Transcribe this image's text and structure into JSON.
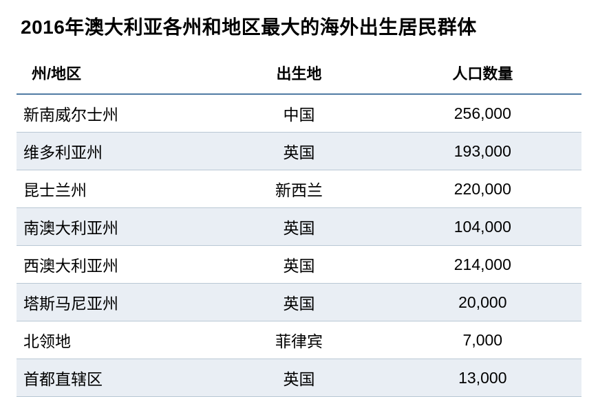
{
  "title": "2016年澳大利亚各州和地区最大的海外出生居民群体",
  "table": {
    "type": "table",
    "columns": [
      "州/地区",
      "出生地",
      "人口数量"
    ],
    "column_align": [
      "left",
      "center",
      "center"
    ],
    "header_fontsize": 22,
    "header_fontweight": 700,
    "body_fontsize": 23,
    "body_fontweight": 400,
    "header_border_color": "#4f7aa3",
    "header_border_width": 2,
    "row_border_color": "#b9c7d4",
    "row_border_width": 1,
    "stripe_even_bg": "#e9eef4",
    "stripe_odd_bg": "#ffffff",
    "text_color": "#000000",
    "rows": [
      {
        "state": "新南威尔士州",
        "birthplace": "中国",
        "population": "256,000"
      },
      {
        "state": "维多利亚州",
        "birthplace": "英国",
        "population": "193,000"
      },
      {
        "state": "昆士兰州",
        "birthplace": "新西兰",
        "population": "220,000"
      },
      {
        "state": "南澳大利亚州",
        "birthplace": "英国",
        "population": "104,000"
      },
      {
        "state": "西澳大利亚州",
        "birthplace": "英国",
        "population": "214,000"
      },
      {
        "state": "塔斯马尼亚州",
        "birthplace": "英国",
        "population": "20,000"
      },
      {
        "state": "北领地",
        "birthplace": "菲律宾",
        "population": "7,000"
      },
      {
        "state": "首都直辖区",
        "birthplace": "英国",
        "population": "13,000"
      }
    ]
  },
  "title_fontsize": 28,
  "title_fontweight": 700,
  "background_color": "#ffffff"
}
